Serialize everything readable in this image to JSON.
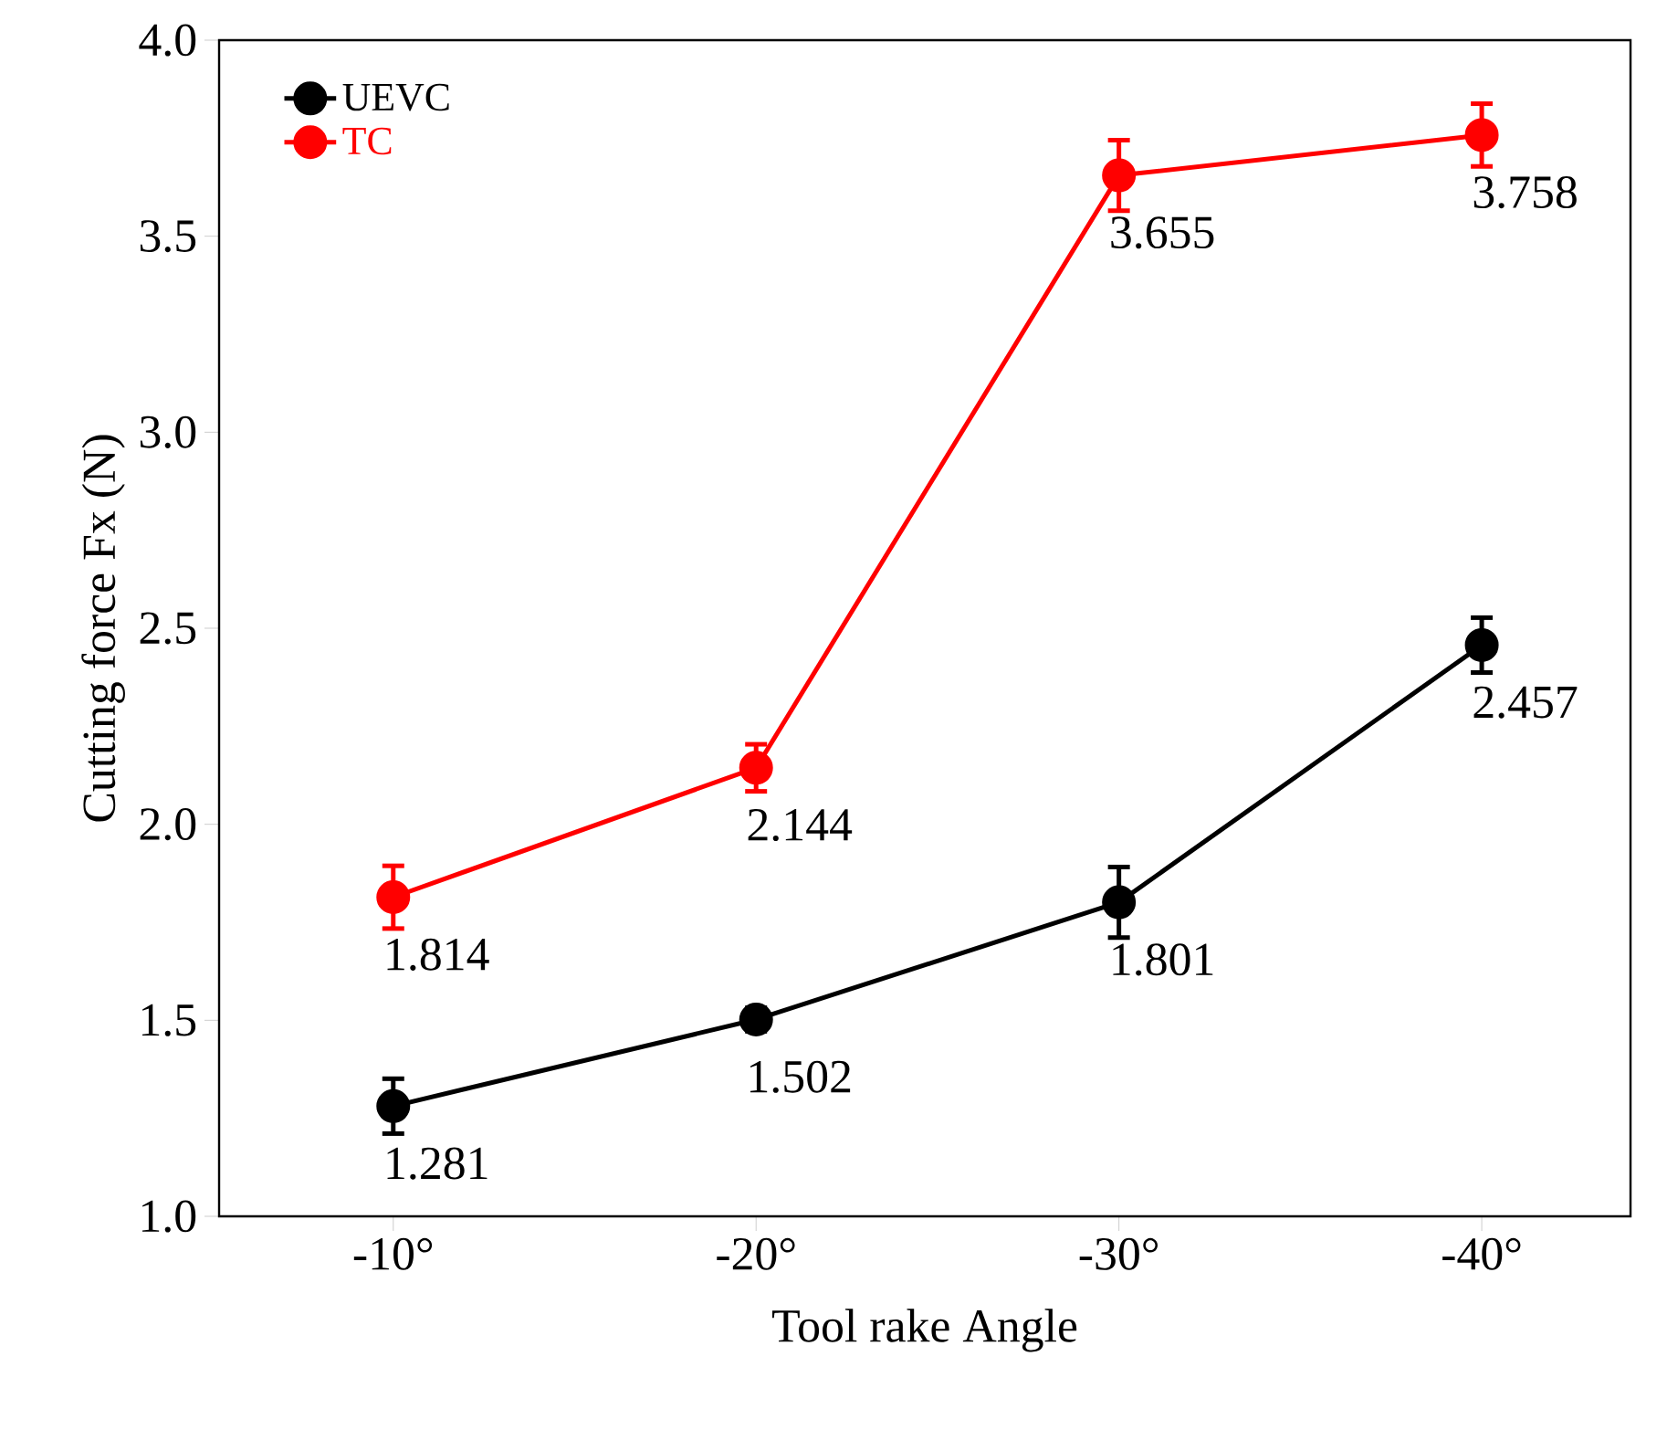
{
  "chart_data": {
    "type": "line",
    "xlabel": "Tool rake Angle",
    "ylabel": "Cutting force Fx (N)",
    "categories": [
      "-10°",
      "-20°",
      "-30°",
      "-40°"
    ],
    "series": [
      {
        "name": "UEVC",
        "color": "#000000",
        "values": [
          1.281,
          1.502,
          1.801,
          2.457
        ],
        "errors": [
          0.07,
          0.03,
          0.09,
          0.07
        ],
        "value_labels": [
          "1.281",
          "1.502",
          "1.801",
          "2.457"
        ]
      },
      {
        "name": "TC",
        "color": "#ff0000",
        "values": [
          1.814,
          2.144,
          3.655,
          3.758
        ],
        "errors": [
          0.08,
          0.06,
          0.09,
          0.08
        ],
        "value_labels": [
          "1.814",
          "2.144",
          "3.655",
          "3.758"
        ]
      }
    ],
    "ylim": [
      1.0,
      4.0
    ],
    "yticks": [
      {
        "value": 1.0,
        "label": "1.0"
      },
      {
        "value": 1.5,
        "label": "1.5"
      },
      {
        "value": 2.0,
        "label": "2.0"
      },
      {
        "value": 2.5,
        "label": "2.5"
      },
      {
        "value": 3.0,
        "label": "3.0"
      },
      {
        "value": 3.5,
        "label": "3.5"
      },
      {
        "value": 4.0,
        "label": "4.0"
      }
    ],
    "legend": "top left",
    "marker": "circle",
    "line_style": "solid",
    "grid": false
  }
}
